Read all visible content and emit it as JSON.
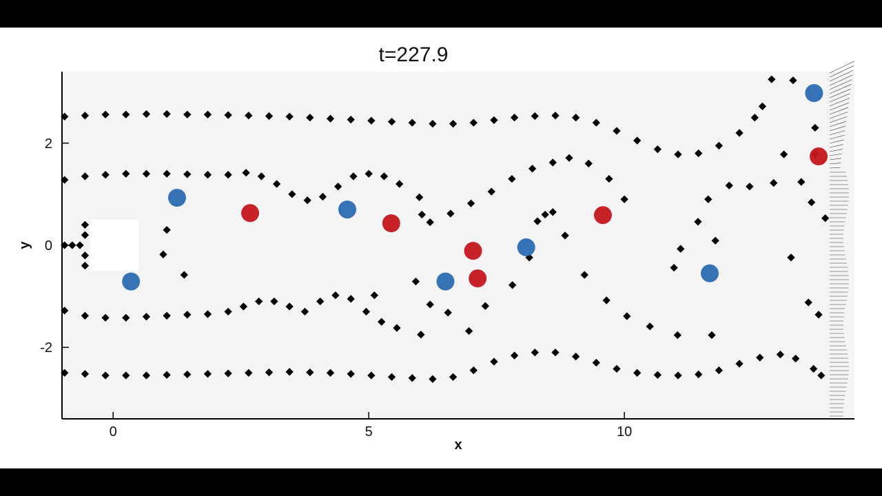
{
  "chart_data": {
    "type": "scatter",
    "title": "t=227.9",
    "x_label": "x",
    "y_label": "y",
    "xlim": [
      -1,
      14.5
    ],
    "ylim": [
      -3.4,
      3.4
    ],
    "xticks": [
      0,
      5,
      10
    ],
    "yticks": [
      -2,
      0,
      2
    ],
    "series": [
      {
        "color": "#000000",
        "x": [
          -0.95,
          -0.55,
          -0.15,
          0.25,
          0.65,
          1.05,
          1.45,
          1.85,
          2.25,
          2.65,
          3.05,
          3.45,
          3.85,
          4.25,
          4.65,
          5.05,
          5.45,
          5.85,
          6.25,
          6.65,
          7.05,
          7.45,
          7.85,
          8.25,
          8.65,
          9.05,
          9.45,
          9.85,
          10.25,
          10.65,
          11.05,
          11.45,
          11.85,
          12.25,
          12.55,
          12.7,
          12.88,
          13.3,
          -0.95,
          -0.55,
          -0.15,
          0.25,
          0.65,
          1.05,
          1.45,
          1.85,
          2.25,
          2.6,
          2.9,
          3.2,
          3.5,
          3.8,
          4.1,
          4.4,
          4.7,
          5.0,
          5.3,
          5.6,
          5.99,
          6.04,
          6.2,
          6.6,
          7.0,
          7.4,
          7.8,
          8.2,
          8.6,
          8.92,
          9.3,
          9.7,
          10.0,
          12.05,
          12.45,
          12.92,
          13.12,
          13.73,
          13.46,
          13.66,
          13.93,
          -0.95,
          -0.55,
          -0.15,
          0.25,
          0.65,
          1.05,
          1.45,
          1.85,
          2.25,
          2.55,
          2.85,
          3.15,
          3.45,
          3.75,
          4.05,
          4.35,
          4.65,
          4.95,
          5.25,
          5.55,
          6.02,
          -0.95,
          -0.55,
          -0.15,
          0.25,
          0.65,
          1.05,
          1.45,
          1.85,
          2.25,
          2.65,
          3.05,
          3.45,
          3.85,
          4.25,
          4.65,
          5.05,
          5.45,
          5.85,
          6.25,
          6.65,
          7.05,
          7.45,
          7.85,
          8.25,
          8.65,
          9.05,
          9.45,
          9.85,
          10.25,
          10.65,
          11.05,
          11.45,
          11.85,
          12.25,
          12.65,
          13.05,
          13.35,
          13.7,
          13.85,
          5.11,
          5.92,
          6.2,
          6.55,
          6.96,
          7.28,
          7.81,
          8.14,
          8.84,
          9.22,
          9.65,
          10.05,
          10.5,
          11.04,
          11.71,
          11.44,
          11.1,
          10.97,
          11.78,
          13.26,
          13.6,
          13.8,
          11.64,
          13.73,
          -0.95,
          -0.8,
          -0.65,
          -0.55,
          -0.55,
          -0.55,
          -0.55,
          1.05,
          0.98,
          1.39,
          8.3,
          8.45,
          8.6
        ],
        "values": [
          2.52,
          2.54,
          2.56,
          2.56,
          2.57,
          2.57,
          2.56,
          2.56,
          2.55,
          2.54,
          2.53,
          2.52,
          2.5,
          2.48,
          2.46,
          2.44,
          2.42,
          2.4,
          2.38,
          2.38,
          2.4,
          2.45,
          2.5,
          2.53,
          2.54,
          2.5,
          2.4,
          2.24,
          2.05,
          1.88,
          1.78,
          1.8,
          1.95,
          2.2,
          2.5,
          2.72,
          3.25,
          3.23,
          1.28,
          1.35,
          1.38,
          1.4,
          1.4,
          1.4,
          1.39,
          1.38,
          1.38,
          1.42,
          1.35,
          1.2,
          1.0,
          0.88,
          0.95,
          1.15,
          1.35,
          1.4,
          1.35,
          1.2,
          0.94,
          0.6,
          0.45,
          0.62,
          0.82,
          1.05,
          1.3,
          1.5,
          1.62,
          1.71,
          1.6,
          1.3,
          0.9,
          1.17,
          1.15,
          1.22,
          1.78,
          2.3,
          1.24,
          0.84,
          0.53,
          -1.28,
          -1.38,
          -1.42,
          -1.42,
          -1.4,
          -1.38,
          -1.36,
          -1.35,
          -1.3,
          -1.2,
          -1.1,
          -1.1,
          -1.2,
          -1.3,
          -1.1,
          -0.98,
          -1.05,
          -1.3,
          -1.5,
          -1.62,
          -1.75,
          -2.5,
          -2.52,
          -2.55,
          -2.55,
          -2.55,
          -2.54,
          -2.53,
          -2.52,
          -2.51,
          -2.5,
          -2.49,
          -2.48,
          -2.49,
          -2.5,
          -2.52,
          -2.55,
          -2.58,
          -2.6,
          -2.62,
          -2.58,
          -2.45,
          -2.28,
          -2.16,
          -2.1,
          -2.1,
          -2.18,
          -2.3,
          -2.42,
          -2.5,
          -2.54,
          -2.55,
          -2.53,
          -2.45,
          -2.32,
          -2.2,
          -2.14,
          -2.22,
          -2.42,
          -2.55,
          -0.98,
          -0.71,
          -1.16,
          -1.32,
          -1.68,
          -1.19,
          -0.78,
          -0.24,
          0.19,
          -0.58,
          -1.08,
          -1.39,
          -1.59,
          -1.76,
          -1.76,
          0.46,
          -0.07,
          -0.44,
          0.09,
          -0.24,
          -1.12,
          -1.36,
          0.9,
          1.78,
          0,
          0,
          0,
          0.2,
          0.4,
          -0.2,
          -0.4,
          0.3,
          -0.18,
          -0.58,
          0.47,
          0.6,
          0.65
        ]
      },
      {
        "color": "#2b6cb0",
        "x": [
          1.25,
          0.35,
          4.58,
          6.5,
          8.08,
          11.67,
          13.71
        ],
        "values": [
          0.93,
          -0.71,
          0.7,
          -0.71,
          -0.04,
          -0.55,
          2.98
        ]
      },
      {
        "color": "#c4161c",
        "x": [
          5.44,
          7.04,
          7.13,
          9.58,
          13.8,
          2.68
        ],
        "values": [
          0.43,
          -0.11,
          -0.65,
          0.59,
          1.74,
          0.63
        ]
      }
    ]
  }
}
